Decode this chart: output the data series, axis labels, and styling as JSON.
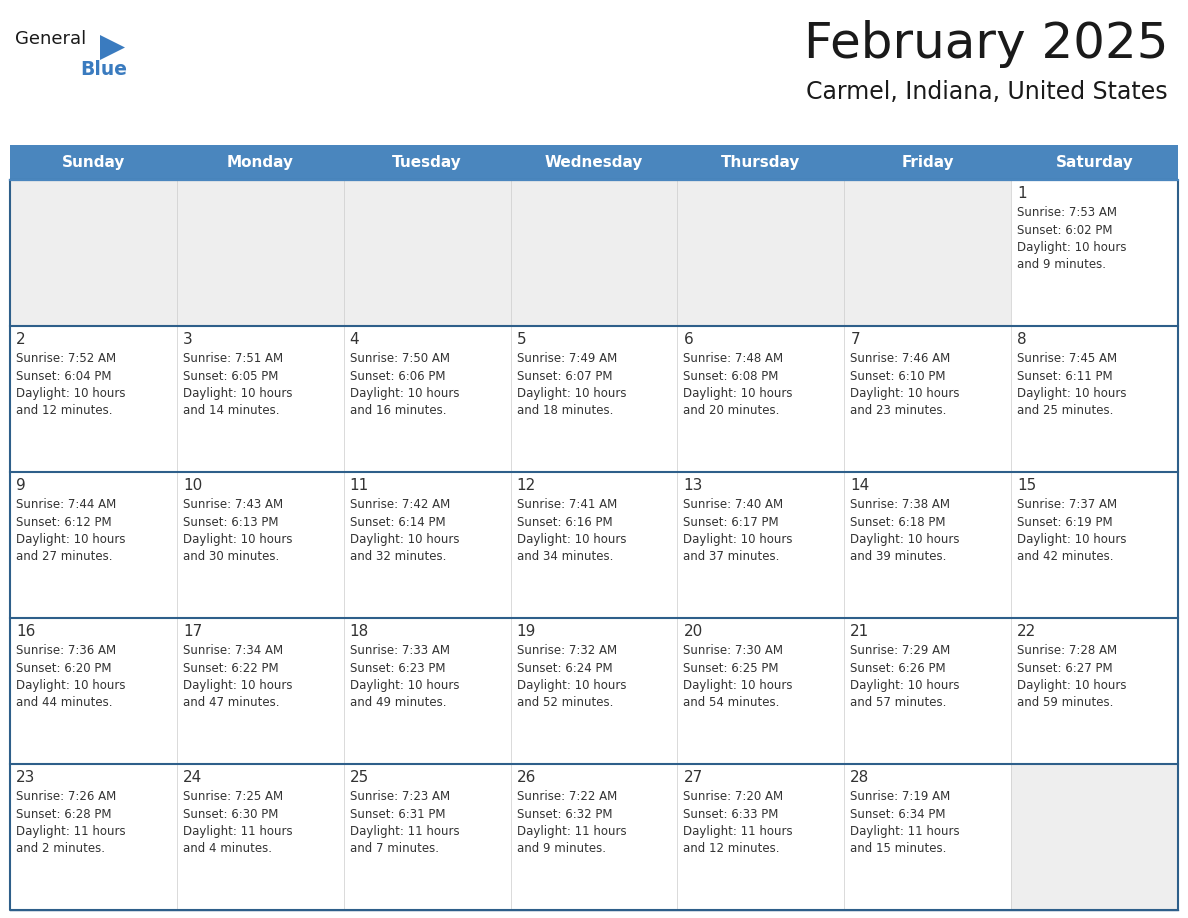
{
  "title": "February 2025",
  "subtitle": "Carmel, Indiana, United States",
  "header_color": "#4a86be",
  "header_text_color": "#ffffff",
  "cell_bg_white": "#ffffff",
  "cell_bg_gray": "#eeeeee",
  "grid_line_color": "#4a86be",
  "grid_line_color_dark": "#2e5f8a",
  "text_color": "#333333",
  "day_number_color": "#333333",
  "days_of_week": [
    "Sunday",
    "Monday",
    "Tuesday",
    "Wednesday",
    "Thursday",
    "Friday",
    "Saturday"
  ],
  "logo_general_color": "#1a1a1a",
  "logo_blue_color": "#3a7bbf",
  "logo_triangle_color": "#3a7bbf",
  "weeks": [
    [
      {
        "day": 0,
        "info": ""
      },
      {
        "day": 0,
        "info": ""
      },
      {
        "day": 0,
        "info": ""
      },
      {
        "day": 0,
        "info": ""
      },
      {
        "day": 0,
        "info": ""
      },
      {
        "day": 0,
        "info": ""
      },
      {
        "day": 1,
        "info": "Sunrise: 7:53 AM\nSunset: 6:02 PM\nDaylight: 10 hours\nand 9 minutes."
      }
    ],
    [
      {
        "day": 2,
        "info": "Sunrise: 7:52 AM\nSunset: 6:04 PM\nDaylight: 10 hours\nand 12 minutes."
      },
      {
        "day": 3,
        "info": "Sunrise: 7:51 AM\nSunset: 6:05 PM\nDaylight: 10 hours\nand 14 minutes."
      },
      {
        "day": 4,
        "info": "Sunrise: 7:50 AM\nSunset: 6:06 PM\nDaylight: 10 hours\nand 16 minutes."
      },
      {
        "day": 5,
        "info": "Sunrise: 7:49 AM\nSunset: 6:07 PM\nDaylight: 10 hours\nand 18 minutes."
      },
      {
        "day": 6,
        "info": "Sunrise: 7:48 AM\nSunset: 6:08 PM\nDaylight: 10 hours\nand 20 minutes."
      },
      {
        "day": 7,
        "info": "Sunrise: 7:46 AM\nSunset: 6:10 PM\nDaylight: 10 hours\nand 23 minutes."
      },
      {
        "day": 8,
        "info": "Sunrise: 7:45 AM\nSunset: 6:11 PM\nDaylight: 10 hours\nand 25 minutes."
      }
    ],
    [
      {
        "day": 9,
        "info": "Sunrise: 7:44 AM\nSunset: 6:12 PM\nDaylight: 10 hours\nand 27 minutes."
      },
      {
        "day": 10,
        "info": "Sunrise: 7:43 AM\nSunset: 6:13 PM\nDaylight: 10 hours\nand 30 minutes."
      },
      {
        "day": 11,
        "info": "Sunrise: 7:42 AM\nSunset: 6:14 PM\nDaylight: 10 hours\nand 32 minutes."
      },
      {
        "day": 12,
        "info": "Sunrise: 7:41 AM\nSunset: 6:16 PM\nDaylight: 10 hours\nand 34 minutes."
      },
      {
        "day": 13,
        "info": "Sunrise: 7:40 AM\nSunset: 6:17 PM\nDaylight: 10 hours\nand 37 minutes."
      },
      {
        "day": 14,
        "info": "Sunrise: 7:38 AM\nSunset: 6:18 PM\nDaylight: 10 hours\nand 39 minutes."
      },
      {
        "day": 15,
        "info": "Sunrise: 7:37 AM\nSunset: 6:19 PM\nDaylight: 10 hours\nand 42 minutes."
      }
    ],
    [
      {
        "day": 16,
        "info": "Sunrise: 7:36 AM\nSunset: 6:20 PM\nDaylight: 10 hours\nand 44 minutes."
      },
      {
        "day": 17,
        "info": "Sunrise: 7:34 AM\nSunset: 6:22 PM\nDaylight: 10 hours\nand 47 minutes."
      },
      {
        "day": 18,
        "info": "Sunrise: 7:33 AM\nSunset: 6:23 PM\nDaylight: 10 hours\nand 49 minutes."
      },
      {
        "day": 19,
        "info": "Sunrise: 7:32 AM\nSunset: 6:24 PM\nDaylight: 10 hours\nand 52 minutes."
      },
      {
        "day": 20,
        "info": "Sunrise: 7:30 AM\nSunset: 6:25 PM\nDaylight: 10 hours\nand 54 minutes."
      },
      {
        "day": 21,
        "info": "Sunrise: 7:29 AM\nSunset: 6:26 PM\nDaylight: 10 hours\nand 57 minutes."
      },
      {
        "day": 22,
        "info": "Sunrise: 7:28 AM\nSunset: 6:27 PM\nDaylight: 10 hours\nand 59 minutes."
      }
    ],
    [
      {
        "day": 23,
        "info": "Sunrise: 7:26 AM\nSunset: 6:28 PM\nDaylight: 11 hours\nand 2 minutes."
      },
      {
        "day": 24,
        "info": "Sunrise: 7:25 AM\nSunset: 6:30 PM\nDaylight: 11 hours\nand 4 minutes."
      },
      {
        "day": 25,
        "info": "Sunrise: 7:23 AM\nSunset: 6:31 PM\nDaylight: 11 hours\nand 7 minutes."
      },
      {
        "day": 26,
        "info": "Sunrise: 7:22 AM\nSunset: 6:32 PM\nDaylight: 11 hours\nand 9 minutes."
      },
      {
        "day": 27,
        "info": "Sunrise: 7:20 AM\nSunset: 6:33 PM\nDaylight: 11 hours\nand 12 minutes."
      },
      {
        "day": 28,
        "info": "Sunrise: 7:19 AM\nSunset: 6:34 PM\nDaylight: 11 hours\nand 15 minutes."
      },
      {
        "day": 0,
        "info": ""
      }
    ]
  ]
}
